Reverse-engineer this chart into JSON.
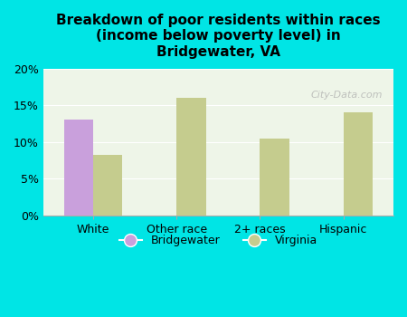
{
  "title": "Breakdown of poor residents within races\n(income below poverty level) in\nBridgewater, VA",
  "categories": [
    "White",
    "Other race",
    "2+ races",
    "Hispanic"
  ],
  "bridgewater_values": [
    13.0,
    0,
    0,
    0
  ],
  "virginia_values": [
    8.3,
    16.0,
    10.5,
    14.0
  ],
  "bridgewater_color": "#c9a0dc",
  "virginia_color": "#c5cc8e",
  "background_color": "#00e5e5",
  "plot_bg_color": "#eef5e8",
  "ylim": [
    0,
    20
  ],
  "yticks": [
    0,
    5,
    10,
    15,
    20
  ],
  "ytick_labels": [
    "0%",
    "5%",
    "10%",
    "15%",
    "20%"
  ],
  "bar_width": 0.35,
  "legend_labels": [
    "Bridgewater",
    "Virginia"
  ],
  "watermark": "City-Data.com"
}
